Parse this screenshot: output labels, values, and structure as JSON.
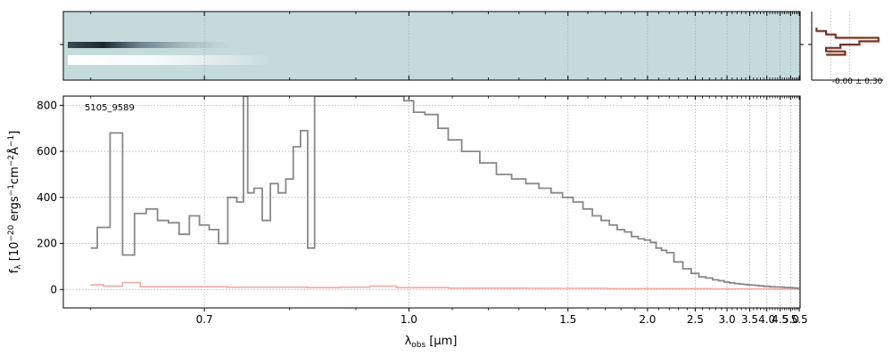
{
  "chart_data": [
    {
      "type": "heatmap",
      "panel": "2d-spectrum",
      "colormap": [
        "#1a2a33",
        "#c5dbdb",
        "#ffffff"
      ],
      "background_color": "#c5dbdb",
      "grid": true
    },
    {
      "type": "line",
      "panel": "spatial-profile",
      "annotation": "-0.00 ± 0.30",
      "profile_color": "#6b3b2e",
      "profile_light_color": "#e8a08c",
      "x": [
        -0.3,
        -0.1,
        0.1,
        1.0,
        0.6,
        0.2,
        -0.1,
        0.3,
        -0.1
      ],
      "y": [
        10,
        8,
        6,
        4,
        2,
        0,
        -2,
        -4,
        -6
      ]
    },
    {
      "type": "line",
      "panel": "1d-spectrum",
      "title": "",
      "annotation": "5105_9589",
      "xlabel": "λ",
      "xlabel_sub": "obs",
      "xlabel_unit": "[μm]",
      "ylabel": "f",
      "ylabel_sub": "λ",
      "ylabel_unit_text": "[10",
      "ylabel_unit_exp1": "−20",
      "ylabel_unit_mid": " ergs",
      "ylabel_unit_exp2": "−1",
      "ylabel_unit_mid2": "cm",
      "ylabel_unit_exp3": "−2",
      "ylabel_unit_mid3": "Å",
      "ylabel_unit_exp4": "−1",
      "ylabel_unit_end": "]",
      "xscale": "reciprocal",
      "xlim": [
        0.58,
        5.55
      ],
      "ylim": [
        -80,
        840
      ],
      "xticks": [
        0.7,
        1.0,
        1.5,
        2.0,
        2.5,
        3.0,
        3.5,
        4.0,
        4.5,
        5.0,
        5.5
      ],
      "xtick_labels": [
        "0.7",
        "1.0",
        "1.5",
        "2.0",
        "2.5",
        "3.0",
        "3.5",
        "4.0",
        "4.5",
        "5.0",
        "5.5"
      ],
      "yticks": [
        0,
        200,
        400,
        600,
        800
      ],
      "ytick_labels": [
        "0",
        "200",
        "400",
        "600",
        "800"
      ],
      "grid": true,
      "series": [
        {
          "color": "#888888",
          "x": [
            0.6,
            0.61,
            0.62,
            0.63,
            0.64,
            0.65,
            0.66,
            0.67,
            0.68,
            0.69,
            0.7,
            0.71,
            0.72,
            0.73,
            0.74,
            0.745,
            0.75,
            0.76,
            0.77,
            0.78,
            0.79,
            0.8,
            0.81,
            0.82,
            0.83,
            0.84,
            0.85,
            0.86,
            0.87,
            0.88,
            0.9,
            0.92,
            0.95,
            0.98,
            1.0,
            1.02,
            1.05,
            1.08,
            1.1,
            1.15,
            1.2,
            1.25,
            1.3,
            1.35,
            1.4,
            1.45,
            1.5,
            1.55,
            1.6,
            1.65,
            1.7,
            1.75,
            1.8,
            1.85,
            1.9,
            1.95,
            2.0,
            2.05,
            2.1,
            2.15,
            2.2,
            2.3,
            2.4,
            2.5,
            2.6,
            2.7,
            2.8,
            2.9,
            3.0,
            3.1,
            3.2,
            3.3,
            3.4,
            3.5,
            3.6,
            3.7,
            3.8,
            4.0,
            4.2,
            4.4,
            4.6,
            4.8,
            5.0,
            5.2,
            5.4,
            5.5
          ],
          "y": [
            180,
            270,
            680,
            150,
            330,
            350,
            300,
            290,
            240,
            320,
            280,
            260,
            200,
            400,
            380,
            840,
            420,
            440,
            300,
            460,
            420,
            480,
            620,
            690,
            180,
            840,
            840,
            840,
            840,
            840,
            840,
            840,
            840,
            840,
            820,
            770,
            760,
            700,
            650,
            600,
            550,
            500,
            480,
            460,
            440,
            420,
            400,
            380,
            350,
            320,
            300,
            280,
            260,
            250,
            230,
            220,
            215,
            205,
            180,
            170,
            160,
            120,
            90,
            70,
            55,
            50,
            42,
            38,
            32,
            29,
            26,
            24,
            22,
            20,
            19,
            18,
            16,
            14,
            12,
            11,
            10,
            9,
            8,
            7,
            6,
            5
          ]
        },
        {
          "color": "#f2a9a2",
          "x": [
            0.6,
            0.62,
            0.63,
            0.65,
            0.7,
            0.75,
            0.8,
            0.85,
            0.9,
            0.95,
            1.0,
            1.2,
            1.5,
            2.0,
            2.5,
            3.0,
            3.5,
            4.0,
            4.5,
            5.0,
            5.5
          ],
          "y": [
            20,
            15,
            30,
            12,
            12,
            10,
            10,
            8,
            10,
            15,
            8,
            6,
            5,
            4,
            4,
            3,
            3,
            3,
            2,
            2,
            2
          ]
        }
      ]
    }
  ]
}
